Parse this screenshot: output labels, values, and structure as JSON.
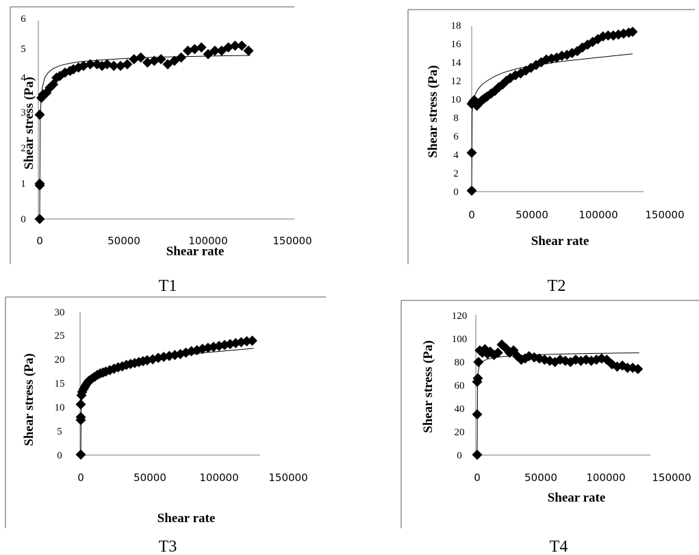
{
  "chart_data": [
    {
      "type": "scatter",
      "caption": "T1",
      "xlabel": "Shear rate",
      "ylabel": "Shear stress (Pa)",
      "xlim": [
        0,
        150000
      ],
      "ylim": [
        0,
        6
      ],
      "xticks": [
        "0",
        "50000",
        "100000",
        "150000"
      ],
      "yticks": [
        "0",
        "1",
        "2",
        "3",
        "4",
        "5",
        "6"
      ],
      "series": [
        {
          "x": [
            0,
            0,
            0,
            0,
            1000,
            2000,
            4000,
            6000,
            8000,
            10000,
            12000,
            15000,
            18000,
            20000,
            23000,
            26000,
            30000,
            34000,
            37000,
            40000,
            44000,
            48000,
            52000,
            56000,
            60000,
            64000,
            68000,
            72000,
            76000,
            80000,
            84000,
            88000,
            92000,
            96000,
            100000,
            104000,
            108000,
            112000,
            116000,
            120000,
            124000
          ],
          "y": [
            0,
            1,
            1.05,
            3.1,
            3.6,
            3.7,
            3.75,
            3.9,
            4.0,
            4.2,
            4.25,
            4.35,
            4.4,
            4.45,
            4.5,
            4.55,
            4.6,
            4.6,
            4.55,
            4.6,
            4.55,
            4.55,
            4.6,
            4.75,
            4.8,
            4.65,
            4.7,
            4.75,
            4.6,
            4.7,
            4.8,
            5.0,
            5.05,
            5.1,
            4.9,
            5.0,
            5.0,
            5.1,
            5.15,
            5.15,
            5.0
          ]
        }
      ],
      "fit": {
        "x": [
          0,
          300,
          800,
          1500,
          3000,
          5000,
          8000,
          12000,
          18000,
          25000,
          35000,
          50000,
          70000,
          90000,
          110000,
          125000
        ],
        "y": [
          0,
          3.0,
          3.55,
          3.9,
          4.2,
          4.35,
          4.47,
          4.56,
          4.63,
          4.68,
          4.72,
          4.77,
          4.81,
          4.83,
          4.85,
          4.86
        ]
      }
    },
    {
      "type": "scatter",
      "caption": "T2",
      "xlabel": "Shear rate",
      "ylabel": "Shear stress (Pa)",
      "xlim": [
        0,
        150000
      ],
      "ylim": [
        0,
        18
      ],
      "xticks": [
        "0",
        "50000",
        "100000",
        "150000"
      ],
      "yticks": [
        "0",
        "2",
        "4",
        "6",
        "8",
        "10",
        "12",
        "14",
        "16",
        "18"
      ],
      "series": [
        {
          "x": [
            0,
            0,
            0,
            1000,
            2000,
            4000,
            6000,
            8000,
            10000,
            12000,
            15000,
            18000,
            21000,
            24000,
            27000,
            30000,
            34000,
            38000,
            42000,
            46000,
            50000,
            54000,
            58000,
            62000,
            66000,
            70000,
            74000,
            78000,
            82000,
            86000,
            90000,
            94000,
            98000,
            102000,
            106000,
            110000,
            114000,
            118000,
            122000,
            125000
          ],
          "y": [
            0.1,
            4.2,
            9.5,
            9.7,
            9.9,
            9.3,
            9.6,
            9.9,
            10.1,
            10.3,
            10.6,
            10.9,
            11.3,
            11.6,
            12.0,
            12.3,
            12.6,
            12.8,
            13.1,
            13.4,
            13.7,
            14.0,
            14.3,
            14.4,
            14.5,
            14.7,
            14.8,
            15.0,
            15.2,
            15.6,
            15.9,
            16.2,
            16.5,
            16.8,
            16.9,
            16.9,
            17.0,
            17.1,
            17.2,
            17.3
          ]
        }
      ],
      "fit": {
        "x": [
          0,
          300,
          800,
          1500,
          3000,
          5000,
          8000,
          12000,
          18000,
          25000,
          35000,
          50000,
          70000,
          90000,
          110000,
          125000
        ],
        "y": [
          0,
          8.5,
          9.3,
          9.9,
          10.6,
          11.1,
          11.6,
          12.0,
          12.5,
          12.9,
          13.3,
          13.7,
          14.1,
          14.4,
          14.7,
          14.9
        ]
      }
    },
    {
      "type": "scatter",
      "caption": "T3",
      "xlabel": "Shear rate",
      "ylabel": "Shear stress (Pa)",
      "xlim": [
        0,
        150000
      ],
      "ylim": [
        0,
        30
      ],
      "xticks": [
        "0",
        "50000",
        "100000",
        "150000"
      ],
      "yticks": [
        "0",
        "5",
        "10",
        "15",
        "20",
        "25",
        "30"
      ],
      "series": [
        {
          "x": [
            0,
            0,
            0,
            0,
            500,
            1000,
            2000,
            3000,
            4000,
            5000,
            6000,
            8000,
            10000,
            12000,
            14000,
            16000,
            18000,
            21000,
            24000,
            27000,
            30000,
            33000,
            36000,
            39000,
            42000,
            45000,
            48000,
            52000,
            56000,
            60000,
            64000,
            68000,
            72000,
            76000,
            80000,
            84000,
            88000,
            92000,
            96000,
            100000,
            104000,
            108000,
            112000,
            116000,
            120000,
            124000
          ],
          "y": [
            0.1,
            7.4,
            8.0,
            10.7,
            12.6,
            13.3,
            13.9,
            14.4,
            14.9,
            15.3,
            15.7,
            16.1,
            16.5,
            16.9,
            17.2,
            17.4,
            17.6,
            17.9,
            18.2,
            18.5,
            18.7,
            19.0,
            19.2,
            19.4,
            19.6,
            19.8,
            20.0,
            20.2,
            20.5,
            20.7,
            20.9,
            21.1,
            21.3,
            21.6,
            21.9,
            22.1,
            22.4,
            22.6,
            22.8,
            23.0,
            23.2,
            23.4,
            23.6,
            23.8,
            24.0,
            24.1
          ]
        }
      ],
      "fit": {
        "x": [
          0,
          300,
          800,
          1500,
          3000,
          5000,
          8000,
          12000,
          18000,
          25000,
          35000,
          50000,
          70000,
          90000,
          110000,
          125000
        ],
        "y": [
          0,
          10.5,
          12.0,
          13.0,
          14.3,
          15.3,
          16.2,
          17.0,
          17.8,
          18.5,
          19.3,
          20.1,
          20.9,
          21.6,
          22.1,
          22.5
        ]
      }
    },
    {
      "type": "scatter",
      "caption": "T4",
      "xlabel": "Shear rate",
      "ylabel": "Shear stress (Pa)",
      "xlim": [
        0,
        150000
      ],
      "ylim": [
        0,
        120
      ],
      "xticks": [
        "0",
        "50000",
        "100000",
        "150000"
      ],
      "yticks": [
        "0",
        "20",
        "40",
        "60",
        "80",
        "100",
        "120"
      ],
      "series": [
        {
          "x": [
            0,
            0,
            0,
            500,
            1000,
            2000,
            4000,
            6000,
            8000,
            10000,
            13000,
            16000,
            19000,
            22000,
            25000,
            28000,
            31000,
            34000,
            37000,
            40000,
            44000,
            48000,
            52000,
            56000,
            60000,
            64000,
            68000,
            72000,
            76000,
            80000,
            84000,
            88000,
            92000,
            96000,
            100000,
            104000,
            108000,
            112000,
            116000,
            120000,
            124000
          ],
          "y": [
            0.3,
            35,
            63,
            66,
            80,
            90,
            88,
            91,
            87,
            89,
            86,
            88,
            95,
            92,
            88,
            90,
            85,
            82,
            83,
            85,
            84,
            83,
            82,
            81,
            80,
            82,
            81,
            80,
            82,
            81,
            82,
            81,
            82,
            83,
            82,
            78,
            76,
            77,
            75,
            75,
            74
          ]
        }
      ],
      "fit": {
        "x": [
          0,
          300,
          800,
          1500,
          3000,
          5000,
          8000,
          12000,
          18000,
          25000,
          35000,
          50000,
          70000,
          90000,
          110000,
          125000
        ],
        "y": [
          0,
          66,
          72,
          76,
          79,
          81,
          82.5,
          83.5,
          84.5,
          85.2,
          85.8,
          86.4,
          87.0,
          87.4,
          87.7,
          87.9
        ]
      }
    }
  ]
}
